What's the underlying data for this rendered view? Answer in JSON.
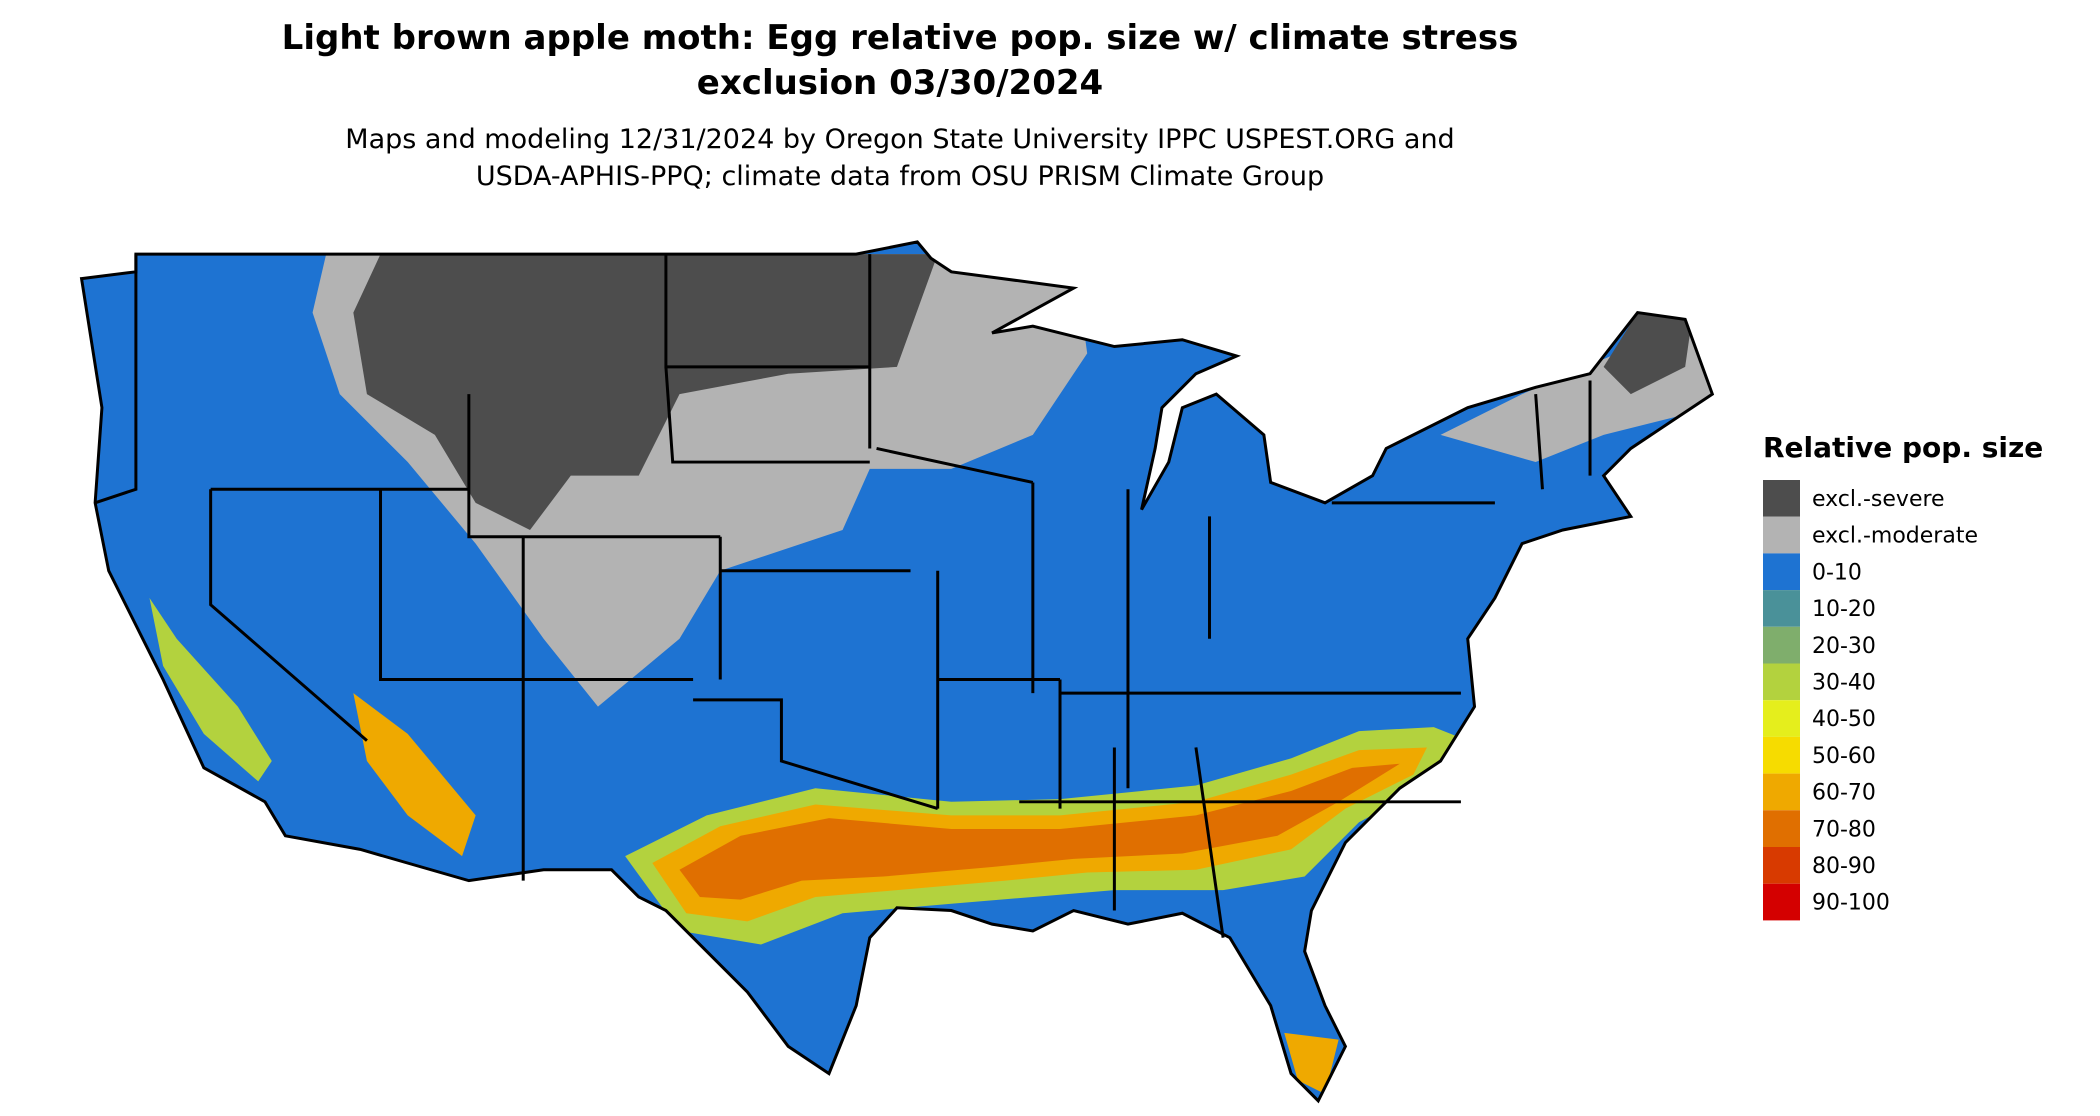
{
  "title_lines": [
    "Light brown apple moth: Egg relative pop. size w/ climate stress",
    "exclusion 03/30/2024"
  ],
  "subtitle_lines": [
    "Maps and modeling 12/31/2024 by Oregon State University IPPC USPEST.ORG and",
    "USDA-APHIS-PPQ; climate data from OSU PRISM Climate Group"
  ],
  "legend": {
    "title": "Relative pop. size",
    "items": [
      {
        "label": "excl.-severe",
        "color": "#4d4d4d"
      },
      {
        "label": "excl.-moderate",
        "color": "#b3b3b3"
      },
      {
        "label": "0-10",
        "color": "#1e73d2"
      },
      {
        "label": "10-20",
        "color": "#4a9199"
      },
      {
        "label": "20-30",
        "color": "#7fae6c"
      },
      {
        "label": "30-40",
        "color": "#b3d23e"
      },
      {
        "label": "40-50",
        "color": "#e5ee1c"
      },
      {
        "label": "50-60",
        "color": "#f6dc00"
      },
      {
        "label": "60-70",
        "color": "#efa900"
      },
      {
        "label": "70-80",
        "color": "#e06f00"
      },
      {
        "label": "80-90",
        "color": "#d83a00"
      },
      {
        "label": "90-100",
        "color": "#d40000"
      }
    ]
  }
}
